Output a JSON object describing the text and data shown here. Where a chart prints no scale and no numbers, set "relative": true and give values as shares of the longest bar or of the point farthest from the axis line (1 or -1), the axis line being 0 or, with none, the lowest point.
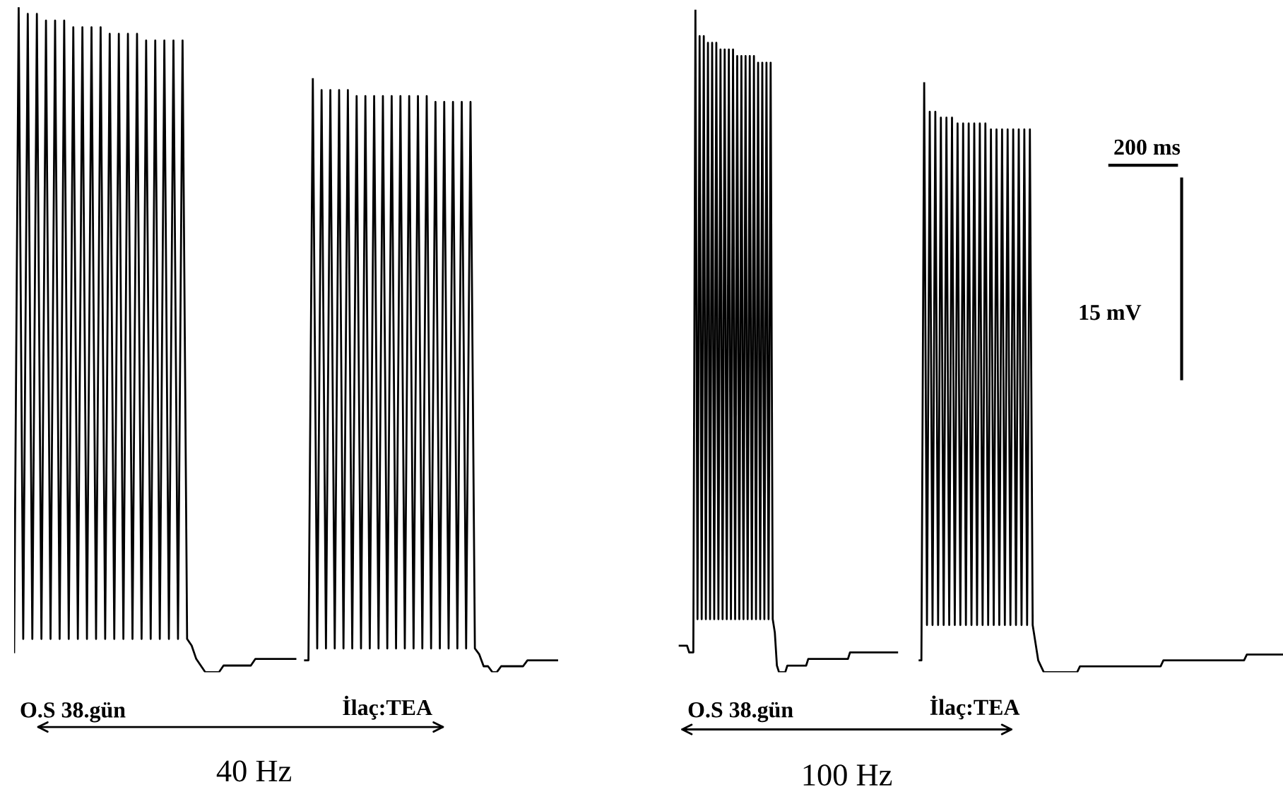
{
  "chart_data": [
    {
      "type": "line",
      "relative": true,
      "xlabel": "O.S 38.gün",
      "annotations": [
        "40 Hz"
      ],
      "categories": [
        null,
        null,
        null,
        null,
        null,
        null,
        null,
        null,
        null,
        null,
        null,
        null,
        null,
        null,
        null,
        null,
        null,
        null,
        null,
        null,
        null,
        null,
        null,
        null,
        null,
        null,
        null,
        null,
        null,
        null,
        null,
        null,
        null,
        null,
        null,
        null,
        null,
        null,
        null,
        null,
        null,
        null,
        null,
        null,
        null,
        null,
        null,
        null,
        null,
        null,
        null,
        null,
        null,
        null,
        null,
        null,
        null,
        null,
        null,
        null,
        null,
        null,
        null
      ],
      "series": [
        {
          "color": "#000000",
          "values": [
            0.03,
            1.0,
            0.05,
            0.99,
            0.05,
            0.99,
            0.05,
            0.98,
            0.05,
            0.98,
            0.05,
            0.98,
            0.05,
            0.97,
            0.05,
            0.97,
            0.05,
            0.97,
            0.05,
            0.97,
            0.05,
            0.96,
            0.05,
            0.96,
            0.05,
            0.96,
            0.05,
            0.96,
            0.05,
            0.95,
            0.05,
            0.95,
            0.05,
            0.95,
            0.05,
            0.95,
            0.05,
            0.95,
            0.05,
            0.04,
            0.02,
            0.01,
            0,
            0,
            0,
            0,
            0.01,
            0.01,
            0.01,
            0.01,
            0.01,
            0.01,
            0.01,
            0.02,
            0.02,
            0.02,
            0.02,
            0.02,
            0.02,
            0.02,
            0.02,
            0.02,
            0.02
          ]
        }
      ]
    },
    {
      "type": "line",
      "relative": true,
      "xlabel": "İlaç:TEA",
      "categories": [
        null,
        null,
        null,
        null,
        null,
        null,
        null,
        null,
        null,
        null,
        null,
        null,
        null,
        null,
        null,
        null,
        null,
        null,
        null,
        null,
        null,
        null,
        null,
        null,
        null,
        null,
        null,
        null,
        null,
        null,
        null,
        null,
        null,
        null,
        null,
        null,
        null,
        null,
        null,
        null,
        null,
        null,
        null,
        null,
        null,
        null,
        null,
        null,
        null,
        null,
        null,
        null,
        null,
        null,
        null,
        null,
        null,
        null,
        null
      ],
      "series": [
        {
          "color": "#000000",
          "values": [
            0.02,
            0.02,
            1.0,
            0.04,
            0.98,
            0.04,
            0.98,
            0.04,
            0.98,
            0.04,
            0.98,
            0.04,
            0.97,
            0.04,
            0.97,
            0.04,
            0.97,
            0.04,
            0.97,
            0.04,
            0.97,
            0.04,
            0.97,
            0.04,
            0.97,
            0.04,
            0.97,
            0.04,
            0.97,
            0.04,
            0.96,
            0.04,
            0.96,
            0.04,
            0.96,
            0.04,
            0.96,
            0.04,
            0.96,
            0.04,
            0.03,
            0.01,
            0.01,
            0,
            0,
            0.01,
            0.01,
            0.01,
            0.01,
            0.01,
            0.01,
            0.02,
            0.02,
            0.02,
            0.02,
            0.02,
            0.02,
            0.02,
            0.02
          ]
        }
      ]
    },
    {
      "type": "line",
      "relative": true,
      "xlabel": "O.S 38.gün",
      "annotations": [
        "100 Hz"
      ],
      "categories": [
        null,
        null,
        null,
        null,
        null,
        null,
        null,
        null,
        null,
        null,
        null,
        null,
        null,
        null,
        null,
        null,
        null,
        null,
        null,
        null,
        null,
        null,
        null,
        null,
        null,
        null,
        null,
        null,
        null,
        null,
        null,
        null,
        null,
        null,
        null,
        null,
        null,
        null,
        null,
        null,
        null,
        null,
        null,
        null,
        null,
        null,
        null,
        null,
        null,
        null,
        null,
        null,
        null,
        null,
        null,
        null,
        null,
        null,
        null,
        null,
        null,
        null,
        null,
        null,
        null,
        null,
        null,
        null,
        null,
        null,
        null,
        null,
        null,
        null,
        null,
        null,
        null,
        null,
        null,
        null,
        null,
        null,
        null,
        null,
        null,
        null,
        null,
        null,
        null,
        null,
        null,
        null,
        null,
        null,
        null,
        null,
        null,
        null,
        null,
        null,
        null,
        null,
        null,
        null,
        null,
        null
      ],
      "series": [
        {
          "color": "#000000",
          "values": [
            0.04,
            0.04,
            0.04,
            0.04,
            0.04,
            0.03,
            0.03,
            0.03,
            1.0,
            0.08,
            0.96,
            0.08,
            0.96,
            0.08,
            0.95,
            0.08,
            0.95,
            0.08,
            0.95,
            0.08,
            0.94,
            0.08,
            0.94,
            0.08,
            0.94,
            0.08,
            0.94,
            0.08,
            0.93,
            0.08,
            0.93,
            0.08,
            0.93,
            0.08,
            0.93,
            0.08,
            0.93,
            0.08,
            0.92,
            0.08,
            0.92,
            0.08,
            0.92,
            0.08,
            0.92,
            0.08,
            0.06,
            0.01,
            0,
            0,
            0,
            0,
            0.01,
            0.01,
            0.01,
            0.01,
            0.01,
            0.01,
            0.01,
            0.01,
            0.01,
            0.01,
            0.02,
            0.02,
            0.02,
            0.02,
            0.02,
            0.02,
            0.02,
            0.02,
            0.02,
            0.02,
            0.02,
            0.02,
            0.02,
            0.02,
            0.02,
            0.02,
            0.02,
            0.02,
            0.02,
            0.02,
            0.03,
            0.03,
            0.03,
            0.03,
            0.03,
            0.03,
            0.03,
            0.03,
            0.03,
            0.03,
            0.03,
            0.03,
            0.03,
            0.03,
            0.03,
            0.03,
            0.03,
            0.03,
            0.03,
            0.03,
            0.03,
            0.03,
            0.03,
            0.03
          ]
        }
      ]
    },
    {
      "type": "line",
      "relative": true,
      "xlabel": "İlaç:TEA",
      "categories": [
        null,
        null,
        null,
        null,
        null,
        null,
        null,
        null,
        null,
        null,
        null,
        null,
        null,
        null,
        null,
        null,
        null,
        null,
        null,
        null,
        null,
        null,
        null,
        null,
        null,
        null,
        null,
        null,
        null,
        null,
        null,
        null,
        null,
        null,
        null,
        null,
        null,
        null,
        null,
        null,
        null,
        null,
        null,
        null,
        null,
        null,
        null,
        null,
        null,
        null,
        null,
        null,
        null,
        null,
        null,
        null,
        null,
        null,
        null,
        null,
        null,
        null,
        null,
        null,
        null,
        null,
        null,
        null,
        null,
        null,
        null,
        null,
        null,
        null,
        null,
        null,
        null,
        null,
        null,
        null,
        null,
        null,
        null,
        null,
        null,
        null,
        null,
        null,
        null,
        null,
        null,
        null,
        null,
        null,
        null,
        null,
        null,
        null,
        null,
        null,
        null,
        null,
        null,
        null,
        null,
        null,
        null,
        null,
        null,
        null,
        null,
        null,
        null,
        null,
        null,
        null,
        null,
        null,
        null,
        null,
        null,
        null,
        null,
        null,
        null,
        null,
        null,
        null,
        null,
        null,
        null,
        null
      ],
      "series": [
        {
          "color": "#000000",
          "values": [
            0.02,
            0.02,
            1.0,
            0.08,
            0.95,
            0.08,
            0.95,
            0.08,
            0.94,
            0.08,
            0.94,
            0.08,
            0.94,
            0.08,
            0.93,
            0.08,
            0.93,
            0.08,
            0.93,
            0.08,
            0.93,
            0.08,
            0.93,
            0.08,
            0.93,
            0.08,
            0.92,
            0.08,
            0.92,
            0.08,
            0.92,
            0.08,
            0.92,
            0.08,
            0.92,
            0.08,
            0.92,
            0.08,
            0.92,
            0.08,
            0.92,
            0.08,
            0.05,
            0.02,
            0.01,
            0,
            0,
            0,
            0,
            0,
            0,
            0,
            0,
            0,
            0,
            0,
            0,
            0,
            0.01,
            0.01,
            0.01,
            0.01,
            0.01,
            0.01,
            0.01,
            0.01,
            0.01,
            0.01,
            0.01,
            0.01,
            0.01,
            0.01,
            0.01,
            0.01,
            0.01,
            0.01,
            0.01,
            0.01,
            0.01,
            0.01,
            0.01,
            0.01,
            0.01,
            0.01,
            0.01,
            0.01,
            0.01,
            0.01,
            0.02,
            0.02,
            0.02,
            0.02,
            0.02,
            0.02,
            0.02,
            0.02,
            0.02,
            0.02,
            0.02,
            0.02,
            0.02,
            0.02,
            0.02,
            0.02,
            0.02,
            0.02,
            0.02,
            0.02,
            0.02,
            0.02,
            0.02,
            0.02,
            0.02,
            0.02,
            0.02,
            0.02,
            0.02,
            0.02,
            0.03,
            0.03,
            0.03,
            0.03,
            0.03,
            0.03,
            0.03,
            0.03,
            0.03,
            0.03,
            0.03,
            0.03,
            0.03,
            0.03
          ]
        }
      ]
    },
    {
      "type": "other",
      "annotations": [
        "200 ms",
        "15 mV"
      ]
    }
  ]
}
